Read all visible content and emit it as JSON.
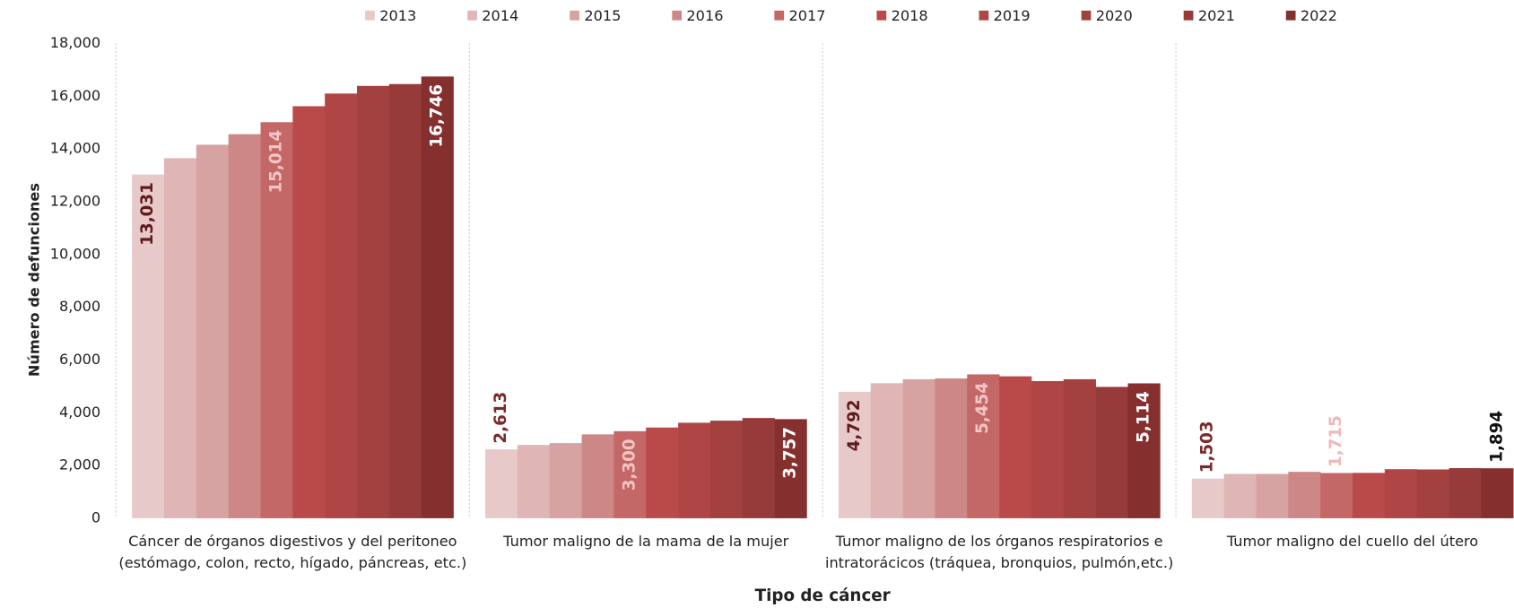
{
  "chart_data": {
    "type": "bar",
    "y_label": "Número de defunciones",
    "x_label": "Tipo de cáncer",
    "categories": [
      "Cáncer de órganos digestivos y del peritoneo (estómago, colon, recto, hígado, páncreas, etc.)",
      "Tumor maligno de la mama de la mujer",
      "Tumor maligno de los órganos respiratorios e intratorácicos (tráquea, bronquios, pulmón,etc.)",
      "Tumor maligno del cuello del útero"
    ],
    "series": [
      {
        "name": "2013",
        "color": "#e8c9c9",
        "values": [
          13031,
          2613,
          4792,
          1503
        ],
        "value_labels": [
          "13,031",
          "2,613",
          "4,792",
          "1,503"
        ]
      },
      {
        "name": "2014",
        "color": "#e0b5b5",
        "values": [
          13650,
          2780,
          5120,
          1680
        ]
      },
      {
        "name": "2015",
        "color": "#d7a2a2",
        "values": [
          14160,
          2850,
          5270,
          1680
        ]
      },
      {
        "name": "2016",
        "color": "#cd8787",
        "values": [
          14560,
          3180,
          5300,
          1760
        ]
      },
      {
        "name": "2017",
        "color": "#c46767",
        "values": [
          15014,
          3300,
          5454,
          1715
        ],
        "value_labels": [
          "15,014",
          "3,300",
          "5,454",
          "1,715"
        ]
      },
      {
        "name": "2018",
        "color": "#ba4a4a",
        "values": [
          15620,
          3440,
          5380,
          1720
        ]
      },
      {
        "name": "2019",
        "color": "#b04545",
        "values": [
          16100,
          3620,
          5200,
          1860
        ]
      },
      {
        "name": "2020",
        "color": "#a34040",
        "values": [
          16390,
          3700,
          5270,
          1850
        ]
      },
      {
        "name": "2021",
        "color": "#973a3a",
        "values": [
          16460,
          3800,
          4980,
          1900
        ]
      },
      {
        "name": "2022",
        "color": "#85302f",
        "values": [
          16746,
          3757,
          5114,
          1894
        ],
        "value_labels": [
          "16,746",
          "3,757",
          "5,114",
          "1,894"
        ]
      }
    ],
    "ylim": [
      0,
      18000
    ],
    "yticks": [
      0,
      {
        "value": 2000,
        "label": "2,000"
      },
      {
        "value": 4000,
        "label": "4,000"
      },
      {
        "value": 6000,
        "label": "6,000"
      },
      {
        "value": 8000,
        "label": "8,000"
      },
      {
        "value": 10000,
        "label": "10,000"
      },
      {
        "value": 12000,
        "label": "12,000"
      },
      {
        "value": 14000,
        "label": "14,000"
      },
      {
        "value": 16000,
        "label": "16,000"
      },
      {
        "value": 18000,
        "label": "18,000"
      }
    ],
    "legend": "top",
    "grid": false
  }
}
